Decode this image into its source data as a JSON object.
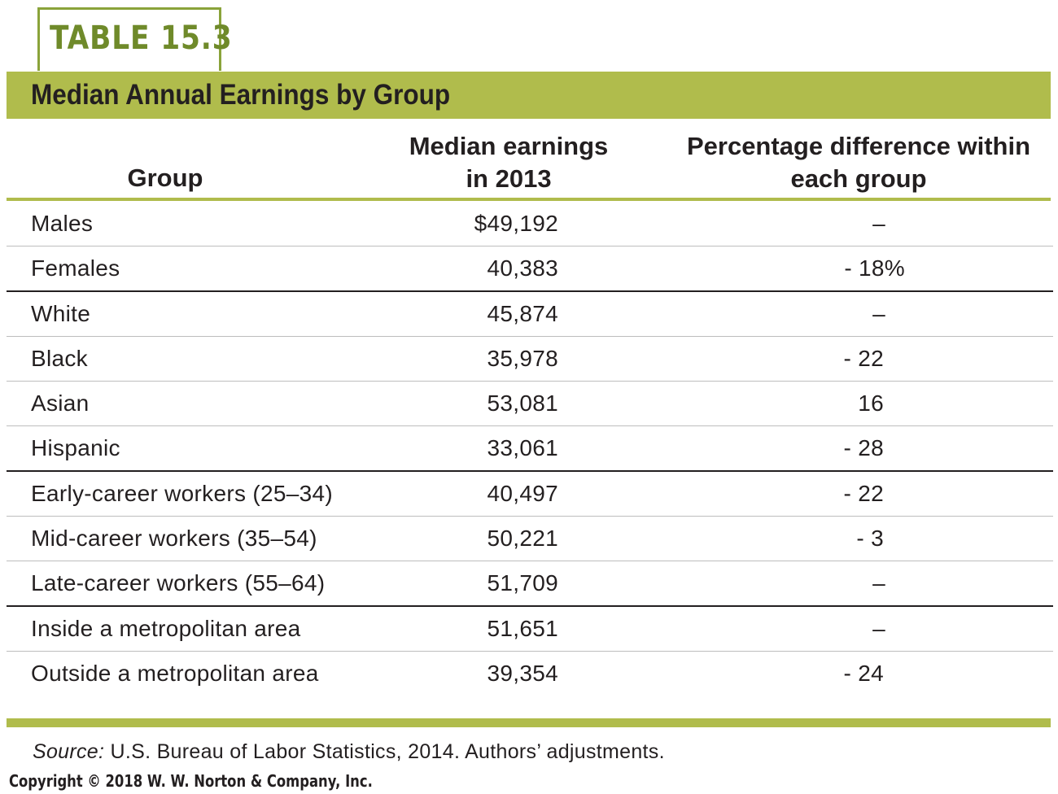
{
  "table_label": "TABLE 15.3",
  "title": "Median Annual Earnings by Group",
  "headers": {
    "group": "Group",
    "earnings_line1": "Median earnings",
    "earnings_line2": "in 2013",
    "pct_line1": "Percentage difference within",
    "pct_line2": "each group"
  },
  "rows": [
    {
      "group": "Males",
      "earnings": "$49,192",
      "pct": "–"
    },
    {
      "group": "Females",
      "earnings": "40,383",
      "pct": "- 18%"
    },
    {
      "group": "White",
      "earnings": "45,874",
      "pct": "–"
    },
    {
      "group": "Black",
      "earnings": "35,978",
      "pct": "- 22"
    },
    {
      "group": "Asian",
      "earnings": "53,081",
      "pct": "16"
    },
    {
      "group": "Hispanic",
      "earnings": "33,061",
      "pct": "- 28"
    },
    {
      "group": "Early-career workers (25–34)",
      "earnings": "40,497",
      "pct": "- 22"
    },
    {
      "group": "Mid-career workers (35–54)",
      "earnings": "50,221",
      "pct": "- 3"
    },
    {
      "group": "Late-career workers (55–64)",
      "earnings": "51,709",
      "pct": "–"
    },
    {
      "group": "Inside a metropolitan area",
      "earnings": "51,651",
      "pct": "–"
    },
    {
      "group": "Outside a metropolitan area",
      "earnings": "39,354",
      "pct": "- 24"
    }
  ],
  "source_label": "Source:",
  "source_text": " U.S. Bureau of Labor Statistics, 2014. Authors’ adjustments.",
  "copyright": "Copyright © 2018 W. W. Norton & Company, Inc.",
  "colors": {
    "accent_green": "#b0bc4c",
    "label_green": "#6f8a2a",
    "text": "#231f20"
  }
}
